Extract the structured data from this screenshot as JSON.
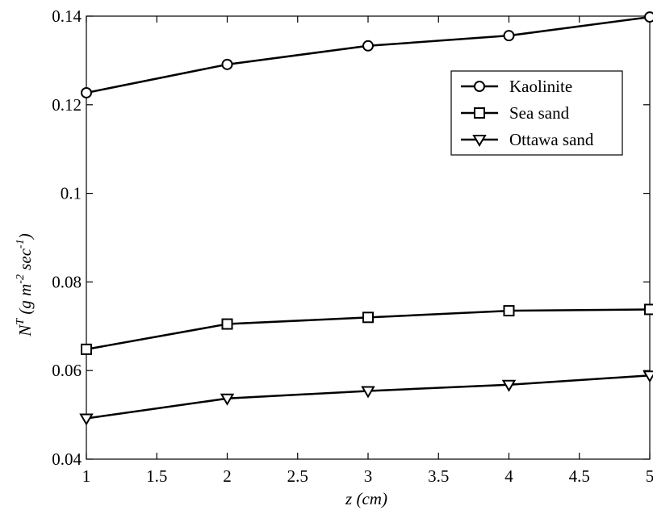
{
  "chart_data": {
    "type": "line",
    "x": [
      1,
      2,
      3,
      4,
      5
    ],
    "series": [
      {
        "name": "Kaolinite",
        "marker": "circle",
        "values": [
          0.1227,
          0.1291,
          0.1333,
          0.1356,
          0.1398
        ]
      },
      {
        "name": "Sea sand",
        "marker": "square",
        "values": [
          0.0648,
          0.0705,
          0.072,
          0.0735,
          0.0738
        ]
      },
      {
        "name": "Ottawa sand",
        "marker": "triangle-down",
        "values": [
          0.0492,
          0.0537,
          0.0554,
          0.0568,
          0.0589
        ]
      }
    ],
    "xlim": [
      1,
      5
    ],
    "ylim": [
      0.04,
      0.14
    ],
    "xticks": [
      "1",
      "1.5",
      "2",
      "2.5",
      "3",
      "3.5",
      "4",
      "4.5",
      "5"
    ],
    "yticks": [
      "0.04",
      "0.06",
      "0.08",
      "0.1",
      "0.12",
      "0.14"
    ],
    "xlabel": "z (cm)",
    "ylabel": {
      "base": "N",
      "sup1": "T",
      "paren_open": " (g m",
      "sup2": "-2",
      "mid": " sec",
      "sup3": "-1",
      "paren_close": ")"
    },
    "grid": false,
    "legend_position": "upper-right",
    "line_color": "#000000"
  }
}
